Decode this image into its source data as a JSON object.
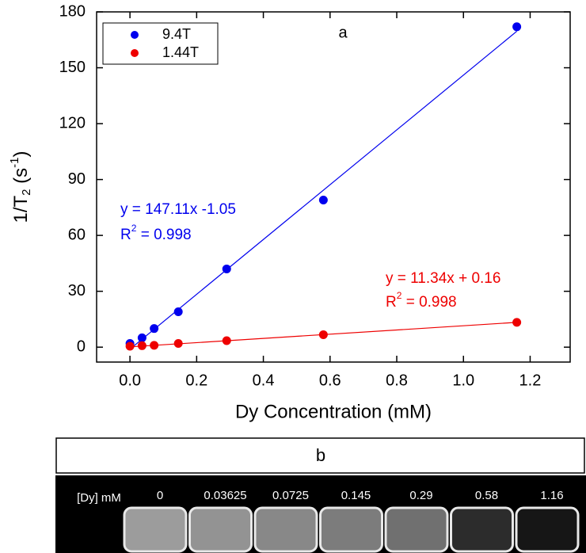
{
  "chart_data": {
    "type": "scatter",
    "annotation": "a",
    "x_label": "Dy Concentration (mM)",
    "y_label": {
      "main": "1/T",
      "sub": "2",
      "unit_open": " (s",
      "sup": "-1",
      "unit_close": ")"
    },
    "xlim": [
      -0.1,
      1.32
    ],
    "ylim": [
      -8,
      180
    ],
    "xticks": [
      {
        "value": 0,
        "label": "0.0"
      },
      {
        "value": 0.2,
        "label": "0.2"
      },
      {
        "value": 0.4,
        "label": "0.4"
      },
      {
        "value": 0.6,
        "label": "0.6"
      },
      {
        "value": 0.8,
        "label": "0.8"
      },
      {
        "value": 1.0,
        "label": "1.0"
      },
      {
        "value": 1.2,
        "label": "1.2"
      }
    ],
    "yticks": [
      0,
      30,
      60,
      90,
      120,
      150,
      180
    ],
    "legend": "upper left",
    "x": [
      0,
      0.03625,
      0.0725,
      0.145,
      0.29,
      0.58,
      1.16
    ],
    "series": [
      {
        "name": "9.4T",
        "color": "#0000ee",
        "values": [
          2,
          5,
          10,
          19,
          42,
          79,
          172
        ],
        "fit": {
          "slope": 147.11,
          "intercept": -1.05,
          "equation": "y = 147.11x -1.05",
          "r2_prefix": "R",
          "r2_sup": "2",
          "r2_rest": " = 0.998"
        }
      },
      {
        "name": "1.44T",
        "color": "#ee0000",
        "values": [
          0.5,
          0.8,
          1,
          2,
          3.5,
          6.7,
          13.3
        ],
        "fit": {
          "slope": 11.34,
          "intercept": 0.16,
          "equation": "y = 11.34x + 0.16",
          "r2_prefix": "R",
          "r2_sup": "2",
          "r2_rest": " = 0.998"
        }
      }
    ]
  },
  "panel_b": {
    "label": "b",
    "row_label": "[Dy] mM",
    "concentrations": [
      "0",
      "0.03625",
      "0.0725",
      "0.145",
      "0.29",
      "0.58",
      "1.16"
    ],
    "tube_colors": [
      "#9c9c9c",
      "#939393",
      "#888888",
      "#7c7c7c",
      "#707070",
      "#2c2c2c",
      "#161616"
    ]
  }
}
